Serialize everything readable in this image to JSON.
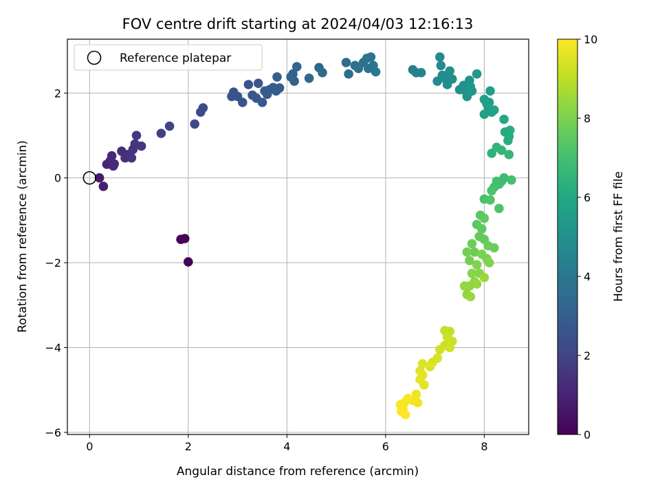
{
  "chart_data": {
    "type": "scatter",
    "title": "FOV centre drift starting at 2024/04/03 12:16:13",
    "xlabel": "Angular distance from reference (arcmin)",
    "ylabel": "Rotation from reference (arcmin)",
    "xlim": [
      -0.45,
      8.9
    ],
    "ylim": [
      -6.05,
      3.27
    ],
    "xticks": [
      "0",
      "2",
      "4",
      "6",
      "8"
    ],
    "yticks": [
      "−6",
      "−4",
      "−2",
      "0",
      "2"
    ],
    "grid": true,
    "legend": {
      "label": "Reference platepar",
      "placement": "top-left"
    },
    "reference_point": {
      "x": 0,
      "y": 0
    },
    "colorbar": {
      "label": "Hours from first FF file",
      "range": [
        0,
        10
      ],
      "ticks": [
        "0",
        "2",
        "4",
        "6",
        "8",
        "10"
      ],
      "colormap": "viridis"
    },
    "series": [
      {
        "points": [
          [
            1.85,
            -1.45,
            0.1
          ],
          [
            1.93,
            -1.43,
            0.1
          ],
          [
            2.0,
            -1.98,
            0.1
          ],
          [
            0.2,
            0.0,
            0.7
          ],
          [
            0.28,
            -0.2,
            0.8
          ],
          [
            0.35,
            0.32,
            1.0
          ],
          [
            0.42,
            0.4,
            1.1
          ],
          [
            0.45,
            0.52,
            1.1
          ],
          [
            0.48,
            0.28,
            1.2
          ],
          [
            0.5,
            0.33,
            1.2
          ],
          [
            0.65,
            0.63,
            1.3
          ],
          [
            0.72,
            0.47,
            1.4
          ],
          [
            0.78,
            0.55,
            1.4
          ],
          [
            0.85,
            0.47,
            1.5
          ],
          [
            0.88,
            0.67,
            1.5
          ],
          [
            0.92,
            0.8,
            1.5
          ],
          [
            0.95,
            1.0,
            1.6
          ],
          [
            1.05,
            0.75,
            1.6
          ],
          [
            1.45,
            1.05,
            1.9
          ],
          [
            1.62,
            1.22,
            2.0
          ],
          [
            2.13,
            1.27,
            2.2
          ],
          [
            2.25,
            1.55,
            2.3
          ],
          [
            2.3,
            1.65,
            2.3
          ],
          [
            2.88,
            1.92,
            2.5
          ],
          [
            2.92,
            2.02,
            2.5
          ],
          [
            3.0,
            1.92,
            2.6
          ],
          [
            3.1,
            1.78,
            2.6
          ],
          [
            3.22,
            2.2,
            2.6
          ],
          [
            3.3,
            1.95,
            2.7
          ],
          [
            3.42,
            2.23,
            2.7
          ],
          [
            3.38,
            1.88,
            2.7
          ],
          [
            3.5,
            1.78,
            2.8
          ],
          [
            3.55,
            2.05,
            2.8
          ],
          [
            3.6,
            1.97,
            2.8
          ],
          [
            3.65,
            2.08,
            2.8
          ],
          [
            3.72,
            2.13,
            2.9
          ],
          [
            3.78,
            2.05,
            2.9
          ],
          [
            3.85,
            2.12,
            2.9
          ],
          [
            3.8,
            2.38,
            3.0
          ],
          [
            4.08,
            2.38,
            3.1
          ],
          [
            4.12,
            2.45,
            3.1
          ],
          [
            4.15,
            2.28,
            3.1
          ],
          [
            4.2,
            2.62,
            3.2
          ],
          [
            4.45,
            2.35,
            3.3
          ],
          [
            4.65,
            2.6,
            3.3
          ],
          [
            4.72,
            2.48,
            3.4
          ],
          [
            5.2,
            2.72,
            3.5
          ],
          [
            5.25,
            2.45,
            3.5
          ],
          [
            5.38,
            2.65,
            3.6
          ],
          [
            5.45,
            2.58,
            3.7
          ],
          [
            5.55,
            2.72,
            3.7
          ],
          [
            5.62,
            2.82,
            3.8
          ],
          [
            5.65,
            2.58,
            3.8
          ],
          [
            5.7,
            2.85,
            3.9
          ],
          [
            5.75,
            2.65,
            3.9
          ],
          [
            5.8,
            2.5,
            4.0
          ],
          [
            6.55,
            2.55,
            4.3
          ],
          [
            6.62,
            2.48,
            4.4
          ],
          [
            6.72,
            2.48,
            4.4
          ],
          [
            7.05,
            2.28,
            4.7
          ],
          [
            7.1,
            2.85,
            4.7
          ],
          [
            7.12,
            2.65,
            4.7
          ],
          [
            7.15,
            2.42,
            4.8
          ],
          [
            7.2,
            2.35,
            4.8
          ],
          [
            7.25,
            2.2,
            4.8
          ],
          [
            7.3,
            2.52,
            4.9
          ],
          [
            7.35,
            2.33,
            4.9
          ],
          [
            7.5,
            2.08,
            5.0
          ],
          [
            7.58,
            2.18,
            5.0
          ],
          [
            7.62,
            2.05,
            5.1
          ],
          [
            7.65,
            1.92,
            5.1
          ],
          [
            7.7,
            2.3,
            5.1
          ],
          [
            7.72,
            2.15,
            5.2
          ],
          [
            7.75,
            2.05,
            5.2
          ],
          [
            7.85,
            2.45,
            5.3
          ],
          [
            8.0,
            1.85,
            5.5
          ],
          [
            8.05,
            1.75,
            5.5
          ],
          [
            8.08,
            1.65,
            5.6
          ],
          [
            8.1,
            1.78,
            5.6
          ],
          [
            8.12,
            2.05,
            5.6
          ],
          [
            8.15,
            1.55,
            5.7
          ],
          [
            8.0,
            1.5,
            5.7
          ],
          [
            8.2,
            1.6,
            5.8
          ],
          [
            8.4,
            1.38,
            6.0
          ],
          [
            8.42,
            1.08,
            6.1
          ],
          [
            8.5,
            0.98,
            6.1
          ],
          [
            8.52,
            1.12,
            6.2
          ],
          [
            8.48,
            0.88,
            6.2
          ],
          [
            8.15,
            0.58,
            6.4
          ],
          [
            8.25,
            0.72,
            6.5
          ],
          [
            8.35,
            0.65,
            6.5
          ],
          [
            8.5,
            0.55,
            6.6
          ],
          [
            8.4,
            0.0,
            6.8
          ],
          [
            8.35,
            -0.08,
            6.8
          ],
          [
            8.3,
            -0.15,
            6.9
          ],
          [
            8.25,
            -0.08,
            6.9
          ],
          [
            8.2,
            -0.22,
            7.0
          ],
          [
            8.55,
            -0.05,
            7.0
          ],
          [
            8.15,
            -0.3,
            7.1
          ],
          [
            8.0,
            -0.5,
            7.1
          ],
          [
            8.12,
            -0.52,
            7.2
          ],
          [
            8.3,
            -0.72,
            7.2
          ],
          [
            7.92,
            -0.88,
            7.4
          ],
          [
            7.85,
            -1.1,
            7.4
          ],
          [
            8.0,
            -0.95,
            7.5
          ],
          [
            7.95,
            -1.2,
            7.5
          ],
          [
            7.9,
            -1.38,
            7.6
          ],
          [
            8.0,
            -1.45,
            7.6
          ],
          [
            8.08,
            -1.6,
            7.7
          ],
          [
            8.2,
            -1.65,
            7.7
          ],
          [
            7.75,
            -1.55,
            7.8
          ],
          [
            7.8,
            -1.75,
            7.8
          ],
          [
            7.65,
            -1.75,
            7.9
          ],
          [
            7.7,
            -1.95,
            7.9
          ],
          [
            7.95,
            -1.8,
            8.0
          ],
          [
            8.05,
            -1.9,
            8.0
          ],
          [
            8.1,
            -2.0,
            8.1
          ],
          [
            7.85,
            -2.05,
            8.1
          ],
          [
            7.9,
            -2.25,
            8.2
          ],
          [
            7.75,
            -2.25,
            8.2
          ],
          [
            7.8,
            -2.45,
            8.3
          ],
          [
            7.7,
            -2.55,
            8.3
          ],
          [
            7.65,
            -2.75,
            8.3
          ],
          [
            7.6,
            -2.55,
            8.4
          ],
          [
            7.85,
            -2.5,
            8.4
          ],
          [
            8.0,
            -2.35,
            8.5
          ],
          [
            7.72,
            -2.8,
            8.5
          ],
          [
            7.2,
            -3.6,
            9.1
          ],
          [
            7.3,
            -3.62,
            9.1
          ],
          [
            7.25,
            -3.75,
            9.2
          ],
          [
            7.35,
            -3.85,
            9.2
          ],
          [
            7.2,
            -3.95,
            9.2
          ],
          [
            7.1,
            -4.05,
            9.3
          ],
          [
            7.3,
            -4.0,
            9.3
          ],
          [
            7.05,
            -4.25,
            9.4
          ],
          [
            6.95,
            -4.35,
            9.4
          ],
          [
            6.9,
            -4.45,
            9.5
          ],
          [
            6.75,
            -4.38,
            9.5
          ],
          [
            6.7,
            -4.55,
            9.5
          ],
          [
            6.75,
            -4.65,
            9.6
          ],
          [
            6.7,
            -4.75,
            9.6
          ],
          [
            6.78,
            -4.88,
            9.6
          ],
          [
            6.62,
            -5.1,
            9.8
          ],
          [
            6.65,
            -5.3,
            9.8
          ],
          [
            6.55,
            -5.25,
            9.8
          ],
          [
            6.45,
            -5.2,
            9.9
          ],
          [
            6.38,
            -5.3,
            9.9
          ],
          [
            6.35,
            -5.45,
            9.9
          ],
          [
            6.3,
            -5.35,
            9.9
          ],
          [
            6.32,
            -5.5,
            10.0
          ],
          [
            6.4,
            -5.58,
            10.0
          ]
        ]
      }
    ]
  }
}
